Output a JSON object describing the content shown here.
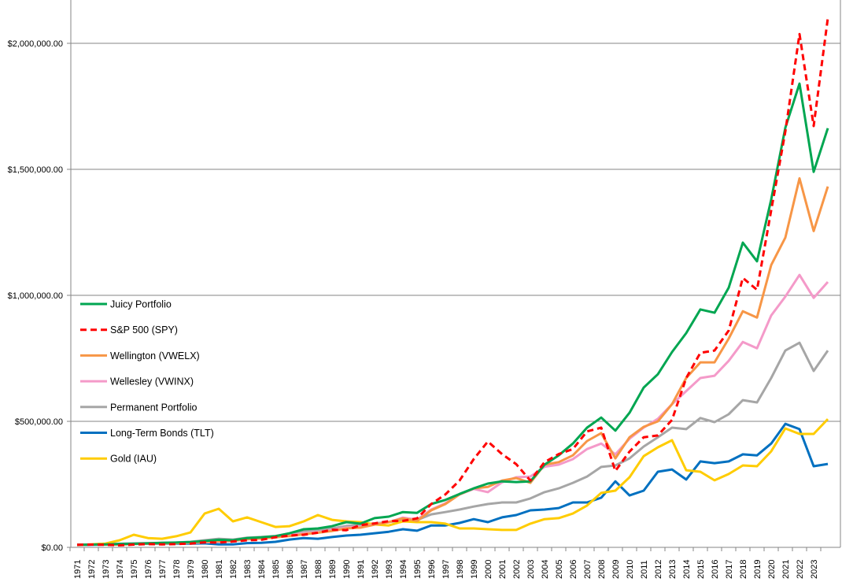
{
  "chart_data": {
    "type": "line",
    "title": "",
    "xlabel": "",
    "ylabel": "",
    "ylim": [
      0,
      2500000
    ],
    "y_ticks": [
      "$0.00",
      "$500,000.00",
      "$1,000,000.00",
      "$1,500,000.00",
      "$2,000,000.00"
    ],
    "y_tick_values": [
      0,
      500000,
      1000000,
      1500000,
      2000000
    ],
    "grid": true,
    "legend_position": "left-middle",
    "categories": [
      "1971",
      "1972",
      "1973",
      "1974",
      "1975",
      "1976",
      "1977",
      "1978",
      "1979",
      "1980",
      "1981",
      "1982",
      "1983",
      "1984",
      "1985",
      "1986",
      "1987",
      "1988",
      "1989",
      "1990",
      "1991",
      "1992",
      "1993",
      "1994",
      "1995",
      "1996",
      "1997",
      "1998",
      "1999",
      "2000",
      "2001",
      "2002",
      "2003",
      "2004",
      "2005",
      "2006",
      "2007",
      "2008",
      "2009",
      "2010",
      "2011",
      "2012",
      "2013",
      "2014",
      "2015",
      "2016",
      "2017",
      "2018",
      "2019",
      "2020",
      "2021",
      "2022",
      "2023",
      ""
    ],
    "series": [
      {
        "name": "Juicy Portfolio",
        "color": "#00A651",
        "dash": false,
        "values": [
          10000,
          11000,
          12000,
          13000,
          14000,
          16000,
          18000,
          19000,
          21000,
          25000,
          30000,
          28000,
          37000,
          40000,
          44000,
          56000,
          72000,
          75000,
          84000,
          100000,
          94000,
          116000,
          122000,
          140000,
          137000,
          172000,
          188000,
          212000,
          234000,
          253000,
          262000,
          259000,
          262000,
          328000,
          365000,
          412000,
          475000,
          515000,
          463000,
          534000,
          634000,
          687000,
          775000,
          850000,
          944000,
          931000,
          1030000,
          1209000,
          1135000,
          1380000,
          1665000,
          1840000,
          1490000,
          1663000
        ]
      },
      {
        "name": "S&P 500 (SPY)",
        "color": "#FF0000",
        "dash": true,
        "values": [
          10000,
          11000,
          10000,
          8000,
          11000,
          13000,
          12000,
          13000,
          15000,
          20000,
          19000,
          23000,
          28000,
          30000,
          40000,
          47000,
          50000,
          58000,
          70000,
          68000,
          88000,
          95000,
          104000,
          105000,
          115000,
          172000,
          210000,
          265000,
          350000,
          420000,
          370000,
          330000,
          265000,
          338000,
          370000,
          390000,
          460000,
          475000,
          303000,
          380000,
          437000,
          444000,
          506000,
          672000,
          772000,
          781000,
          860000,
          1069000,
          1022000,
          1337000,
          1650000,
          2037000,
          1672000,
          2100000
        ]
      },
      {
        "name": "Wellington (VWELX)",
        "color": "#F79646",
        "dash": false,
        "values": [
          10000,
          11000,
          11000,
          11000,
          13000,
          15000,
          16000,
          17000,
          19000,
          22000,
          24000,
          26000,
          32000,
          35000,
          40000,
          45000,
          52000,
          58000,
          65000,
          75000,
          78000,
          90000,
          100000,
          115000,
          105000,
          147000,
          172000,
          210000,
          234000,
          240000,
          265000,
          275000,
          256000,
          328000,
          338000,
          365000,
          422000,
          453000,
          353000,
          437000,
          478000,
          500000,
          568000,
          672000,
          734000,
          734000,
          828000,
          937000,
          912000,
          1120000,
          1229000,
          1464000,
          1255000,
          1432000
        ]
      },
      {
        "name": "Wellesley (VWINX)",
        "color": "#F49AC9",
        "dash": false,
        "values": [
          10000,
          11000,
          11000,
          11000,
          13000,
          15000,
          16000,
          17000,
          18000,
          20000,
          22000,
          25000,
          32000,
          35000,
          42000,
          48000,
          55000,
          60000,
          68000,
          78000,
          82000,
          92000,
          100000,
          118000,
          110000,
          150000,
          175000,
          210000,
          232000,
          219000,
          258000,
          278000,
          281000,
          320000,
          328000,
          350000,
          390000,
          412000,
          369000,
          431000,
          475000,
          510000,
          568000,
          620000,
          672000,
          681000,
          740000,
          815000,
          790000,
          920000,
          995000,
          1081000,
          990000,
          1053000
        ]
      },
      {
        "name": "Permanent Portfolio",
        "color": "#A6A6A6",
        "dash": false,
        "values": [
          10000,
          12000,
          13000,
          14000,
          16000,
          17000,
          18000,
          19000,
          22000,
          28000,
          34000,
          31000,
          38000,
          41000,
          45000,
          55000,
          65000,
          70000,
          75000,
          85000,
          88000,
          95000,
          100000,
          110000,
          108000,
          131000,
          140000,
          150000,
          162000,
          172000,
          178000,
          178000,
          194000,
          219000,
          234000,
          256000,
          281000,
          319000,
          325000,
          353000,
          400000,
          437000,
          475000,
          469000,
          513000,
          497000,
          528000,
          584000,
          575000,
          672000,
          781000,
          812000,
          700000,
          781000
        ]
      },
      {
        "name": "Long-Term Bonds (TLT)",
        "color": "#0070C0",
        "dash": false,
        "values": [
          9000,
          10000,
          11000,
          13000,
          14000,
          14000,
          15000,
          15000,
          15000,
          16000,
          12000,
          12000,
          17000,
          18000,
          22000,
          31000,
          37000,
          34000,
          41000,
          47000,
          50000,
          56000,
          62000,
          72000,
          66000,
          87000,
          87000,
          97000,
          112000,
          100000,
          119000,
          128000,
          147000,
          150000,
          156000,
          178000,
          178000,
          197000,
          262000,
          206000,
          225000,
          300000,
          309000,
          269000,
          341000,
          334000,
          341000,
          369000,
          365000,
          412000,
          490000,
          469000,
          322000,
          331000
        ]
      },
      {
        "name": "Gold (IAU)",
        "color": "#FFCC00",
        "dash": false,
        "values": [
          9000,
          12000,
          15000,
          28000,
          50000,
          37000,
          34000,
          44000,
          59000,
          134000,
          153000,
          103000,
          119000,
          100000,
          81000,
          84000,
          103000,
          128000,
          109000,
          103000,
          100000,
          91000,
          87000,
          103000,
          100000,
          100000,
          94000,
          75000,
          75000,
          72000,
          69000,
          69000,
          94000,
          112000,
          116000,
          134000,
          166000,
          216000,
          225000,
          278000,
          362000,
          397000,
          425000,
          306000,
          300000,
          266000,
          291000,
          325000,
          322000,
          381000,
          472000,
          450000,
          450000,
          509000
        ]
      }
    ]
  }
}
